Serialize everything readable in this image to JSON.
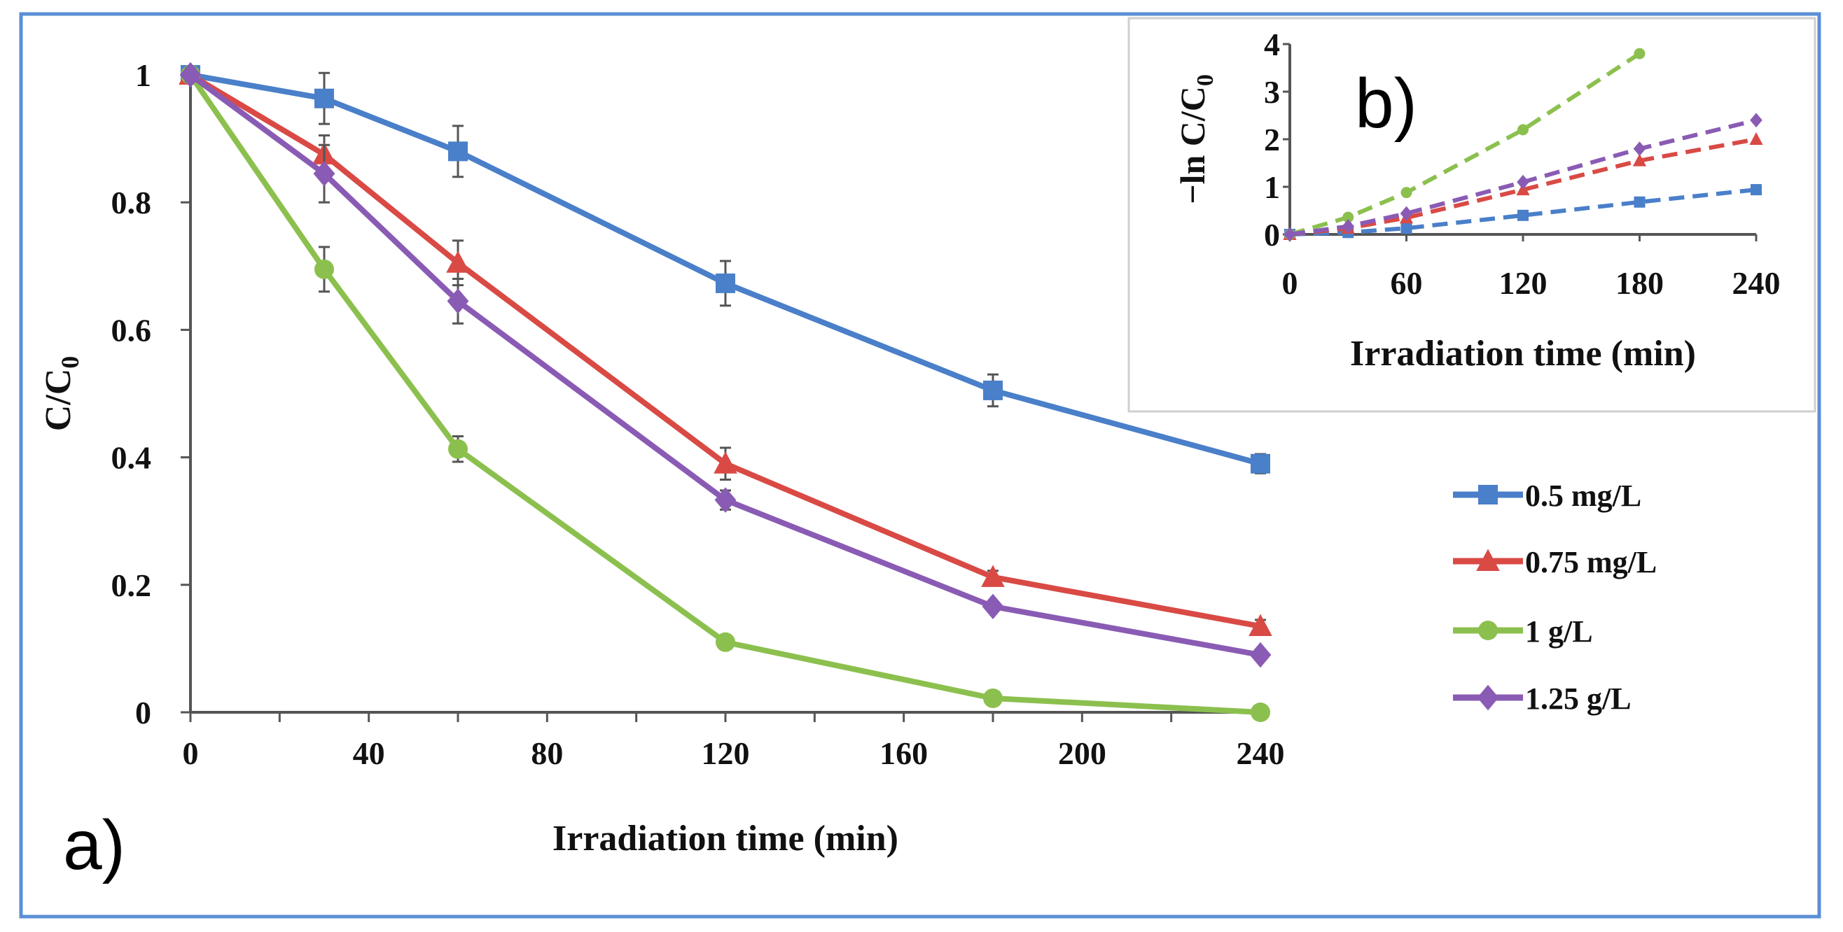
{
  "chart_data": [
    {
      "id": "a",
      "panel_label": "a)",
      "type": "line",
      "xlabel": "Irradiation time (min)",
      "ylabel": "C/C",
      "ylabel_sub": "0",
      "xlim": [
        0,
        240
      ],
      "ylim": [
        0,
        1
      ],
      "x_ticks": [
        0,
        40,
        80,
        120,
        160,
        200,
        240
      ],
      "x_minor_step": 20,
      "y_ticks": [
        0,
        0.2,
        0.4,
        0.6,
        0.8,
        1
      ],
      "y_tick_labels": [
        "0",
        "0.2",
        "0.4",
        "0.6",
        "0.8",
        "1"
      ],
      "legend_position": "right",
      "series": [
        {
          "name": "0.5 mg/L",
          "color": "#4a7fc9",
          "marker": "square",
          "x": [
            0,
            30,
            60,
            120,
            180,
            240
          ],
          "y": [
            1,
            0.963,
            0.88,
            0.673,
            0.505,
            0.39
          ],
          "err": [
            0.01,
            0.04,
            0.04,
            0.035,
            0.025,
            0.015
          ]
        },
        {
          "name": "0.75 mg/L",
          "color": "#d94a45",
          "marker": "triangle",
          "x": [
            0,
            30,
            60,
            120,
            180,
            240
          ],
          "y": [
            1,
            0.875,
            0.705,
            0.39,
            0.212,
            0.135
          ],
          "err": [
            0.01,
            0.03,
            0.035,
            0.025,
            0.01,
            0.01
          ]
        },
        {
          "name": "1 g/L",
          "color": "#8cc04e",
          "marker": "circle",
          "x": [
            0,
            30,
            60,
            120,
            180,
            240
          ],
          "y": [
            1,
            0.695,
            0.413,
            0.11,
            0.022,
            0.0
          ],
          "err": [
            0.01,
            0.035,
            0.02,
            0.008,
            0.005,
            0.003
          ]
        },
        {
          "name": "1.25 g/L",
          "color": "#8a5bb4",
          "marker": "diamond",
          "x": [
            0,
            30,
            60,
            120,
            180,
            240
          ],
          "y": [
            1,
            0.845,
            0.645,
            0.333,
            0.166,
            0.09
          ],
          "err": [
            0.01,
            0.045,
            0.035,
            0.015,
            0.008,
            0.008
          ]
        }
      ]
    },
    {
      "id": "b",
      "panel_label": "b)",
      "type": "line",
      "xlabel": "Irradiation time (min)",
      "ylabel": "−ln C/C",
      "ylabel_sub": "0",
      "xlim": [
        0,
        240
      ],
      "ylim": [
        0,
        4
      ],
      "x_ticks": [
        0,
        60,
        120,
        180,
        240
      ],
      "y_ticks": [
        0,
        1,
        2,
        3,
        4
      ],
      "series": [
        {
          "name": "0.5 mg/L",
          "color": "#4a7fc9",
          "marker": "square",
          "x": [
            0,
            30,
            60,
            120,
            180,
            240
          ],
          "y": [
            0,
            0.04,
            0.13,
            0.4,
            0.68,
            0.94
          ]
        },
        {
          "name": "0.75 mg/L",
          "color": "#d94a45",
          "marker": "triangle",
          "x": [
            0,
            30,
            60,
            120,
            180,
            240
          ],
          "y": [
            0,
            0.13,
            0.35,
            0.94,
            1.55,
            2.0
          ]
        },
        {
          "name": "1 g/L",
          "color": "#8cc04e",
          "marker": "circle",
          "x": [
            0,
            30,
            60,
            120,
            180
          ],
          "y": [
            0,
            0.36,
            0.88,
            2.2,
            3.8
          ]
        },
        {
          "name": "1.25 g/L",
          "color": "#8a5bb4",
          "marker": "diamond",
          "x": [
            0,
            30,
            60,
            120,
            180,
            240
          ],
          "y": [
            0,
            0.17,
            0.44,
            1.1,
            1.8,
            2.4
          ]
        }
      ]
    }
  ]
}
